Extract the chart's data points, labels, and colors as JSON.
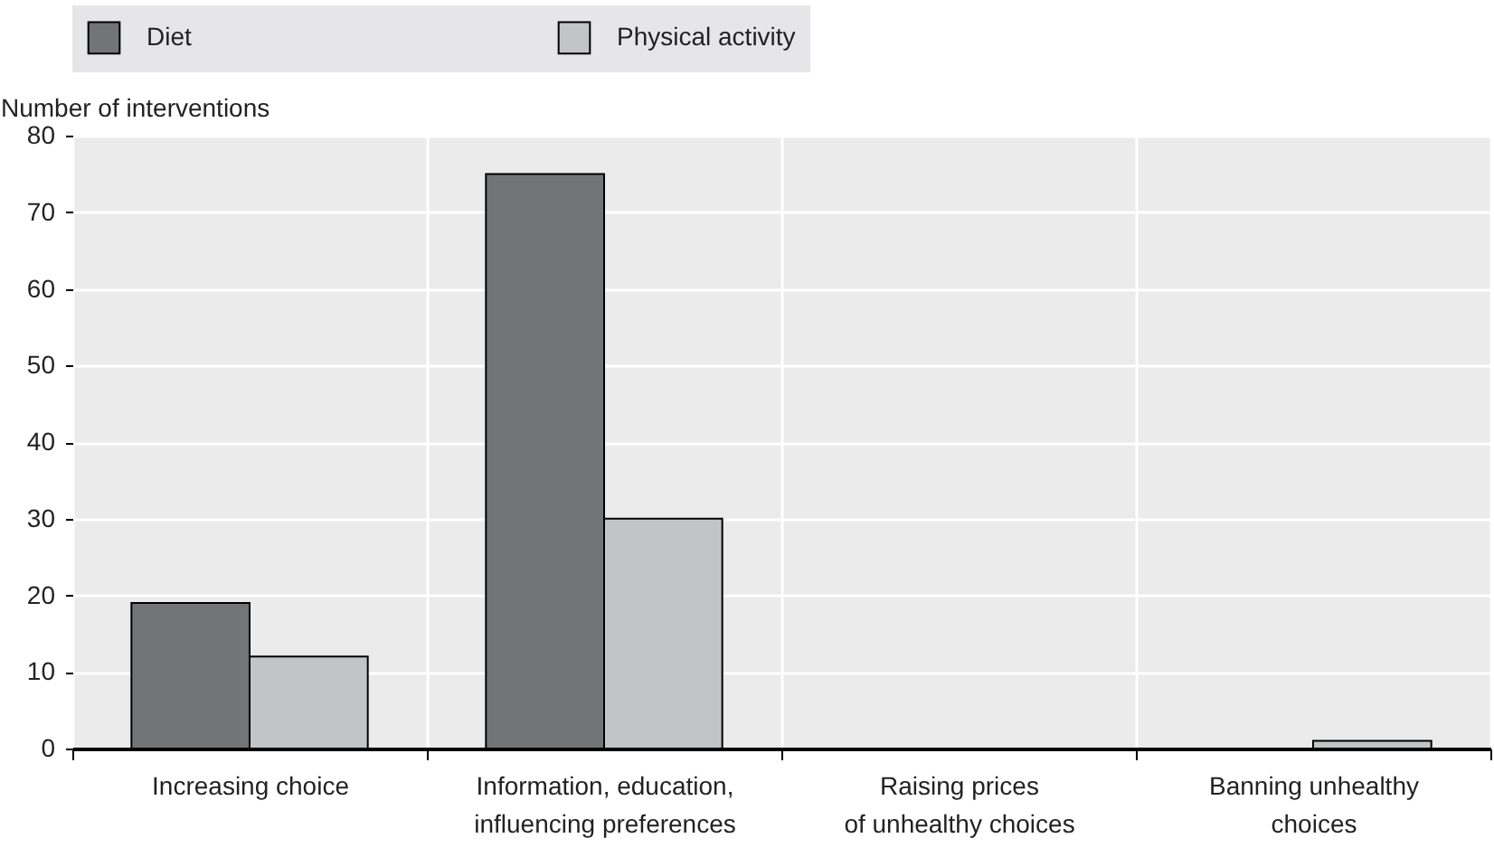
{
  "chart_data": {
    "type": "bar",
    "ylabel": "Number of interventions",
    "categories": [
      "Increasing choice",
      "Information, education,\ninfluencing preferences",
      "Raising prices\nof unhealthy choices",
      "Banning unhealthy\nchoices"
    ],
    "series": [
      {
        "name": "Diet",
        "color": "#737478",
        "values": [
          19,
          75,
          0,
          0
        ]
      },
      {
        "name": "Physical activity",
        "color": "#c3c4c6",
        "values": [
          12,
          30,
          0,
          1
        ]
      }
    ],
    "ylim": [
      0,
      80
    ],
    "yticks": [
      0,
      10,
      20,
      30,
      40,
      50,
      60,
      70,
      80
    ],
    "grid": true,
    "legend": "top"
  }
}
